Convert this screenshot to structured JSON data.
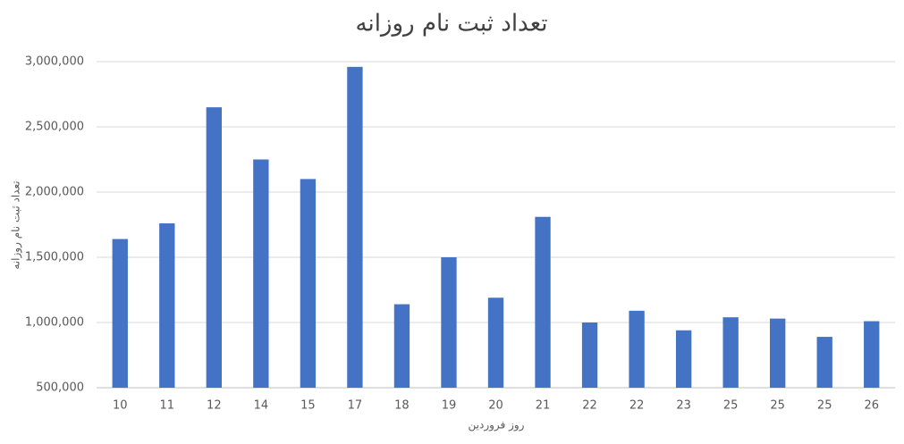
{
  "chart_data": {
    "type": "bar",
    "title": "تعداد ثبت نام روزانه",
    "x_label": "روز فروردین",
    "y_label": "تعداد ثبت نام روزانه",
    "categories": [
      "10",
      "11",
      "12",
      "14",
      "15",
      "17",
      "18",
      "19",
      "20",
      "21",
      "22",
      "22",
      "23",
      "25",
      "25",
      "25",
      "26"
    ],
    "values": [
      1640000,
      1760000,
      2650000,
      2250000,
      2100000,
      2960000,
      1140000,
      1500000,
      1190000,
      1810000,
      1000000,
      1090000,
      940000,
      1040000,
      1030000,
      890000,
      1010000
    ],
    "color": "#4472c4",
    "ylim": [
      500000,
      3000000
    ],
    "yticks": [
      {
        "value": 500000,
        "label": "500,000"
      },
      {
        "value": 1000000,
        "label": "1,000,000"
      },
      {
        "value": 1500000,
        "label": "1,500,000"
      },
      {
        "value": 2000000,
        "label": "2,000,000"
      },
      {
        "value": 2500000,
        "label": "2,500,000"
      },
      {
        "value": 3000000,
        "label": "3,000,000"
      }
    ],
    "grid": true
  }
}
